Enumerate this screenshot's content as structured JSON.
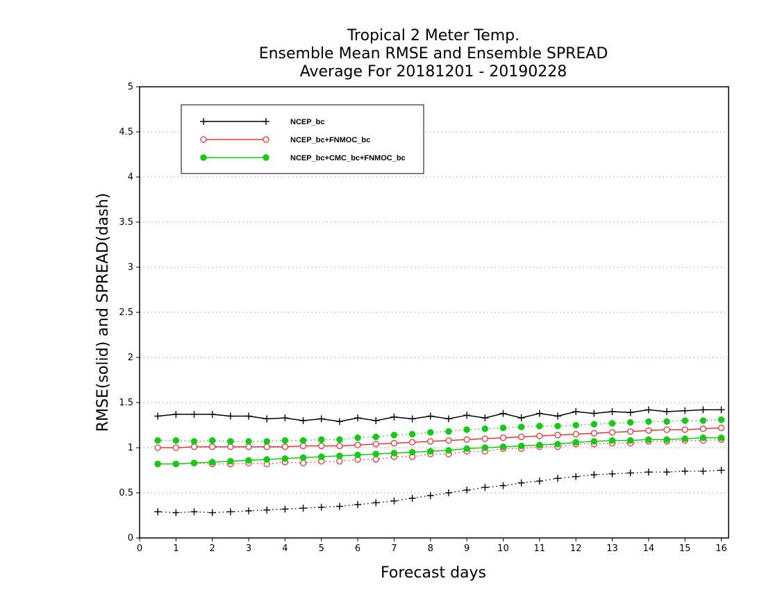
{
  "chart_data": {
    "type": "line",
    "title_lines": [
      "Tropical 2 Meter Temp.",
      "Ensemble Mean RMSE and Ensemble SPREAD",
      "Average For 20181201 - 20190228"
    ],
    "xlabel": "Forecast days",
    "ylabel": "RMSE(solid) and SPREAD(dash)",
    "xlim": [
      0,
      16.2
    ],
    "ylim": [
      0,
      5
    ],
    "xticks": [
      0,
      1,
      2,
      3,
      4,
      5,
      6,
      7,
      8,
      9,
      10,
      11,
      12,
      13,
      14,
      15,
      16
    ],
    "yticks": [
      0,
      0.5,
      1,
      1.5,
      2,
      2.5,
      3,
      3.5,
      4,
      4.5,
      5
    ],
    "ytick_labels": [
      "0",
      "0.5",
      "1",
      "1.5",
      "2",
      "2.5",
      "3",
      "3.5",
      "4",
      "4.5",
      "5"
    ],
    "grid": "horizontal dotted",
    "legend_position": "top-left",
    "x": [
      0.5,
      1,
      1.5,
      2,
      2.5,
      3,
      3.5,
      4,
      4.5,
      5,
      5.5,
      6,
      6.5,
      7,
      7.5,
      8,
      8.5,
      9,
      9.5,
      10,
      10.5,
      11,
      11.5,
      12,
      12.5,
      13,
      13.5,
      14,
      14.5,
      15,
      15.5,
      16
    ],
    "series": [
      {
        "name": "NCEP_bc",
        "metric": "RMSE",
        "color": "#000000",
        "marker": "plus",
        "style": "solid",
        "values": [
          1.35,
          1.37,
          1.37,
          1.37,
          1.35,
          1.35,
          1.32,
          1.33,
          1.3,
          1.32,
          1.29,
          1.33,
          1.3,
          1.34,
          1.32,
          1.35,
          1.32,
          1.36,
          1.33,
          1.38,
          1.33,
          1.38,
          1.35,
          1.4,
          1.38,
          1.4,
          1.39,
          1.42,
          1.4,
          1.41,
          1.42,
          1.42
        ]
      },
      {
        "name": "NCEP_bc",
        "metric": "SPREAD",
        "color": "#000000",
        "marker": "plus",
        "style": "dotted",
        "values": [
          0.29,
          0.28,
          0.29,
          0.28,
          0.29,
          0.3,
          0.31,
          0.32,
          0.33,
          0.34,
          0.35,
          0.37,
          0.39,
          0.41,
          0.44,
          0.47,
          0.5,
          0.53,
          0.56,
          0.58,
          0.61,
          0.63,
          0.66,
          0.68,
          0.7,
          0.71,
          0.72,
          0.73,
          0.73,
          0.74,
          0.74,
          0.75
        ]
      },
      {
        "name": "NCEP_bc+FNMOC_bc",
        "metric": "RMSE",
        "color": "#ee3333",
        "marker": "open-circle",
        "style": "solid",
        "values": [
          1.0,
          1.0,
          1.01,
          1.01,
          1.01,
          1.01,
          1.01,
          1.01,
          1.02,
          1.02,
          1.02,
          1.03,
          1.04,
          1.05,
          1.06,
          1.07,
          1.08,
          1.09,
          1.1,
          1.11,
          1.12,
          1.13,
          1.14,
          1.15,
          1.16,
          1.17,
          1.18,
          1.19,
          1.2,
          1.2,
          1.21,
          1.22
        ]
      },
      {
        "name": "NCEP_bc+FNMOC_bc",
        "metric": "SPREAD",
        "color": "#ee3333",
        "marker": "open-circle",
        "style": "dotted",
        "values": [
          0.82,
          0.82,
          0.83,
          0.82,
          0.82,
          0.83,
          0.82,
          0.84,
          0.83,
          0.85,
          0.85,
          0.87,
          0.87,
          0.9,
          0.9,
          0.93,
          0.93,
          0.96,
          0.96,
          0.99,
          0.99,
          1.01,
          1.01,
          1.04,
          1.04,
          1.05,
          1.05,
          1.07,
          1.07,
          1.08,
          1.08,
          1.09
        ]
      },
      {
        "name": "NCEP_bc+CMC_bc+FNMOC_bc",
        "metric": "RMSE",
        "color": "#11cc11",
        "marker": "filled-circle",
        "style": "solid",
        "values": [
          0.82,
          0.82,
          0.83,
          0.84,
          0.85,
          0.86,
          0.87,
          0.88,
          0.89,
          0.9,
          0.91,
          0.92,
          0.93,
          0.94,
          0.95,
          0.96,
          0.97,
          0.99,
          1.0,
          1.01,
          1.02,
          1.03,
          1.04,
          1.06,
          1.07,
          1.08,
          1.08,
          1.09,
          1.09,
          1.1,
          1.11,
          1.11
        ]
      },
      {
        "name": "NCEP_bc+CMC_bc+FNMOC_bc",
        "metric": "SPREAD",
        "color": "#11cc11",
        "marker": "filled-circle",
        "style": "dotted",
        "values": [
          1.08,
          1.08,
          1.07,
          1.08,
          1.07,
          1.07,
          1.07,
          1.08,
          1.08,
          1.09,
          1.09,
          1.11,
          1.12,
          1.14,
          1.15,
          1.17,
          1.18,
          1.2,
          1.21,
          1.22,
          1.23,
          1.24,
          1.24,
          1.25,
          1.26,
          1.27,
          1.28,
          1.29,
          1.29,
          1.3,
          1.3,
          1.31
        ]
      }
    ],
    "legend": [
      {
        "label": "NCEP_bc",
        "color": "#000000",
        "marker": "plus"
      },
      {
        "label": "NCEP_bc+FNMOC_bc",
        "color": "#ee3333",
        "marker": "open-circle"
      },
      {
        "label": "NCEP_bc+CMC_bc+FNMOC_bc",
        "color": "#11cc11",
        "marker": "filled-circle"
      }
    ]
  }
}
